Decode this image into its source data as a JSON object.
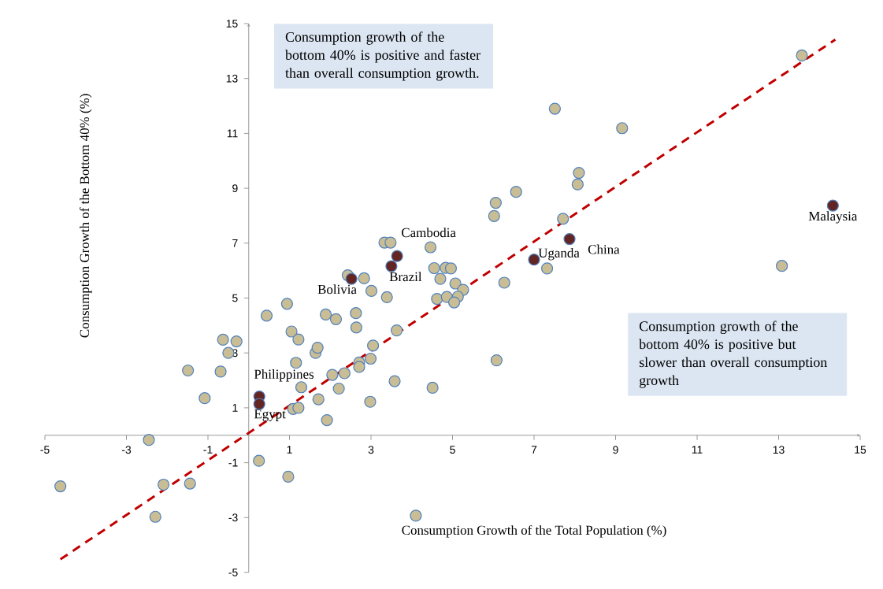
{
  "chart_data": {
    "type": "scatter",
    "xlabel": "Consumption Growth of the Total Population (%)",
    "ylabel": "Consumption Growth of the Bottom 40% (%)",
    "xlim": [
      -5,
      15
    ],
    "ylim": [
      -5,
      15
    ],
    "xticks": [
      -5,
      -3,
      -1,
      1,
      3,
      5,
      7,
      9,
      11,
      13,
      15
    ],
    "yticks": [
      -5,
      -3,
      -1,
      1,
      3,
      5,
      7,
      9,
      11,
      13,
      15
    ],
    "marker": "circle",
    "series": [
      {
        "color": "#c9bd96",
        "x": [
          -4.62,
          -2.45,
          -2.09,
          -2.29,
          -1.44,
          0.25,
          0.97,
          4.1,
          1.92,
          -1.49,
          -0.69,
          -1.08,
          -0.63,
          -0.3,
          -0.5,
          0.44,
          0.94,
          1.05,
          1.22,
          1.16,
          1.64,
          1.69,
          1.29,
          1.09,
          1.22,
          1.71,
          1.89,
          2.14,
          2.05,
          2.21,
          2.35,
          2.63,
          2.64,
          2.43,
          2.83,
          3.01,
          3.39,
          2.71,
          2.71,
          2.99,
          3.05,
          2.98,
          3.33,
          3.48,
          4.46,
          4.55,
          4.83,
          4.96,
          4.7,
          5.07,
          5.26,
          4.62,
          4.86,
          5.13,
          5.04,
          3.63,
          3.58,
          4.51,
          6.08,
          6.27,
          6.02,
          6.06,
          6.56,
          7.71,
          8.1,
          8.07,
          7.32,
          7.51,
          9.16,
          13.08,
          13.57
        ],
        "values": [
          -1.86,
          -0.17,
          -1.8,
          -2.97,
          -1.76,
          -0.93,
          -1.51,
          -2.93,
          0.55,
          2.36,
          2.32,
          1.35,
          3.48,
          3.42,
          3.0,
          4.36,
          4.79,
          3.78,
          3.49,
          2.64,
          3.0,
          3.19,
          1.75,
          0.96,
          1.0,
          1.31,
          4.4,
          4.23,
          2.2,
          1.7,
          2.26,
          4.45,
          3.93,
          5.83,
          5.72,
          5.26,
          5.03,
          2.65,
          2.49,
          2.79,
          3.27,
          1.22,
          7.02,
          7.02,
          6.85,
          6.09,
          6.1,
          6.08,
          5.7,
          5.53,
          5.3,
          4.97,
          5.04,
          5.05,
          4.84,
          3.82,
          1.97,
          1.73,
          2.73,
          5.56,
          7.99,
          8.47,
          8.87,
          7.89,
          9.56,
          9.14,
          6.08,
          11.9,
          11.19,
          6.17,
          13.84
        ]
      },
      {
        "color": "#632523",
        "x": [
          0.26,
          0.26,
          2.52,
          3.5,
          3.64,
          7.0,
          7.87,
          14.33
        ],
        "values": [
          1.41,
          1.14,
          5.7,
          6.16,
          6.53,
          6.4,
          7.15,
          8.37
        ]
      },
      {
        "type": "line",
        "color": "#c00000",
        "line_style": "dashed",
        "marker": "none",
        "x": [
          -4.62,
          14.39
        ],
        "values": [
          -4.52,
          14.42
        ]
      }
    ],
    "annotations": [
      "Consumption growth of the bottom 40% is positive and faster than overall consumption growth.",
      "Consumption growth of the bottom 40% is positive but slower than overall consumption growth",
      {
        "text": "Philippines",
        "x": 0.26,
        "y": 1.41
      },
      {
        "text": "Egypt",
        "x": 0.26,
        "y": 1.14
      },
      {
        "text": "Bolivia",
        "x": 2.52,
        "y": 5.7
      },
      {
        "text": "Brazil",
        "x": 3.5,
        "y": 6.16
      },
      {
        "text": "Cambodia",
        "x": 3.64,
        "y": 6.53
      },
      {
        "text": "Uganda",
        "x": 7.0,
        "y": 6.4
      },
      {
        "text": "China",
        "x": 7.87,
        "y": 7.15
      },
      {
        "text": "Malaysia",
        "x": 14.33,
        "y": 8.37
      }
    ]
  }
}
